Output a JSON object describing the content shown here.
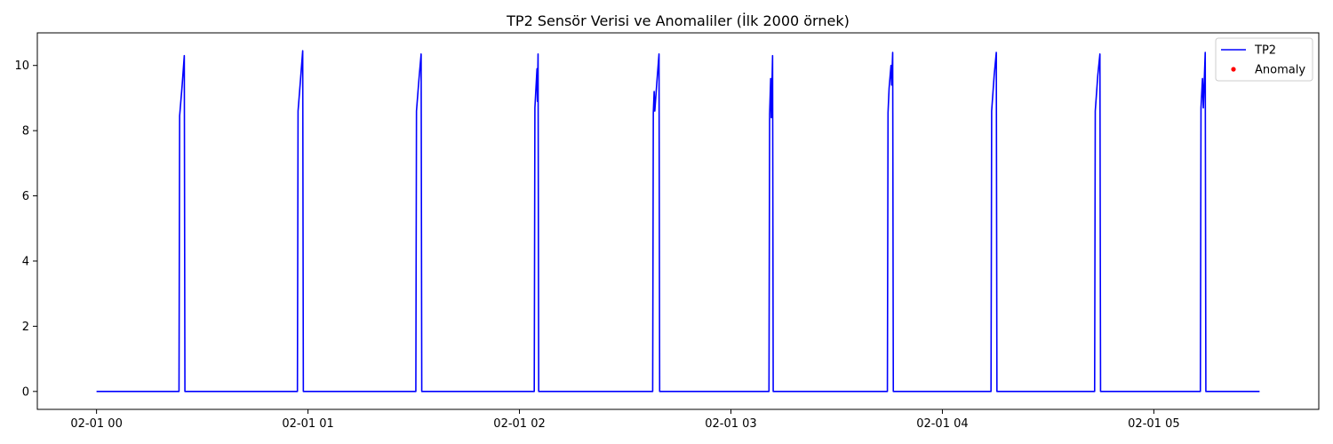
{
  "chart_data": {
    "type": "line",
    "title": "TP2 Sensör Verisi ve Anomaliler (İlk 2000 örnek)",
    "xlabel": "",
    "ylabel": "",
    "x_unit": "hours",
    "x_range_hours": [
      0,
      5.5
    ],
    "xlim_hours": [
      -0.28,
      5.78
    ],
    "ylim": [
      -0.55,
      11.0
    ],
    "x_ticks": [
      {
        "hours": 0,
        "label": "02-01 00"
      },
      {
        "hours": 1,
        "label": "02-01 01"
      },
      {
        "hours": 2,
        "label": "02-01 02"
      },
      {
        "hours": 3,
        "label": "02-01 03"
      },
      {
        "hours": 4,
        "label": "02-01 04"
      },
      {
        "hours": 5,
        "label": "02-01 05"
      }
    ],
    "y_ticks": [
      0,
      2,
      4,
      6,
      8,
      10
    ],
    "grid": false,
    "legend_position": "top-right",
    "series": [
      {
        "name": "TP2",
        "color": "#0000ff",
        "points": [
          [
            0.0,
            0.0
          ],
          [
            0.39,
            0.0
          ],
          [
            0.393,
            8.45
          ],
          [
            0.405,
            9.4
          ],
          [
            0.415,
            10.3
          ],
          [
            0.418,
            0.0
          ],
          [
            0.95,
            0.0
          ],
          [
            0.953,
            8.6
          ],
          [
            0.965,
            9.6
          ],
          [
            0.975,
            10.45
          ],
          [
            0.978,
            0.0
          ],
          [
            1.51,
            0.0
          ],
          [
            1.513,
            8.6
          ],
          [
            1.525,
            9.6
          ],
          [
            1.535,
            10.35
          ],
          [
            1.538,
            0.0
          ],
          [
            2.07,
            0.0
          ],
          [
            2.073,
            8.7
          ],
          [
            2.083,
            9.9
          ],
          [
            2.085,
            8.9
          ],
          [
            2.088,
            10.35
          ],
          [
            2.091,
            0.0
          ],
          [
            2.63,
            0.0
          ],
          [
            2.633,
            8.55
          ],
          [
            2.637,
            9.2
          ],
          [
            2.64,
            8.6
          ],
          [
            2.65,
            9.5
          ],
          [
            2.66,
            10.35
          ],
          [
            2.663,
            0.0
          ],
          [
            3.18,
            0.0
          ],
          [
            3.183,
            8.5
          ],
          [
            3.188,
            9.6
          ],
          [
            3.191,
            8.4
          ],
          [
            3.197,
            10.3
          ],
          [
            3.2,
            0.0
          ],
          [
            3.74,
            0.0
          ],
          [
            3.743,
            8.55
          ],
          [
            3.748,
            9.3
          ],
          [
            3.757,
            10.0
          ],
          [
            3.76,
            9.4
          ],
          [
            3.765,
            10.4
          ],
          [
            3.768,
            0.0
          ],
          [
            4.23,
            0.0
          ],
          [
            4.233,
            8.6
          ],
          [
            4.245,
            9.7
          ],
          [
            4.255,
            10.4
          ],
          [
            4.258,
            0.0
          ],
          [
            4.72,
            0.0
          ],
          [
            4.723,
            8.6
          ],
          [
            4.735,
            9.7
          ],
          [
            4.745,
            10.35
          ],
          [
            4.748,
            0.0
          ],
          [
            5.22,
            0.0
          ],
          [
            5.223,
            8.7
          ],
          [
            5.23,
            9.6
          ],
          [
            5.234,
            8.7
          ],
          [
            5.243,
            10.4
          ],
          [
            5.246,
            0.0
          ],
          [
            5.5,
            0.0
          ]
        ]
      },
      {
        "name": "Anomaly",
        "color": "#ff0000",
        "points": []
      }
    ]
  }
}
